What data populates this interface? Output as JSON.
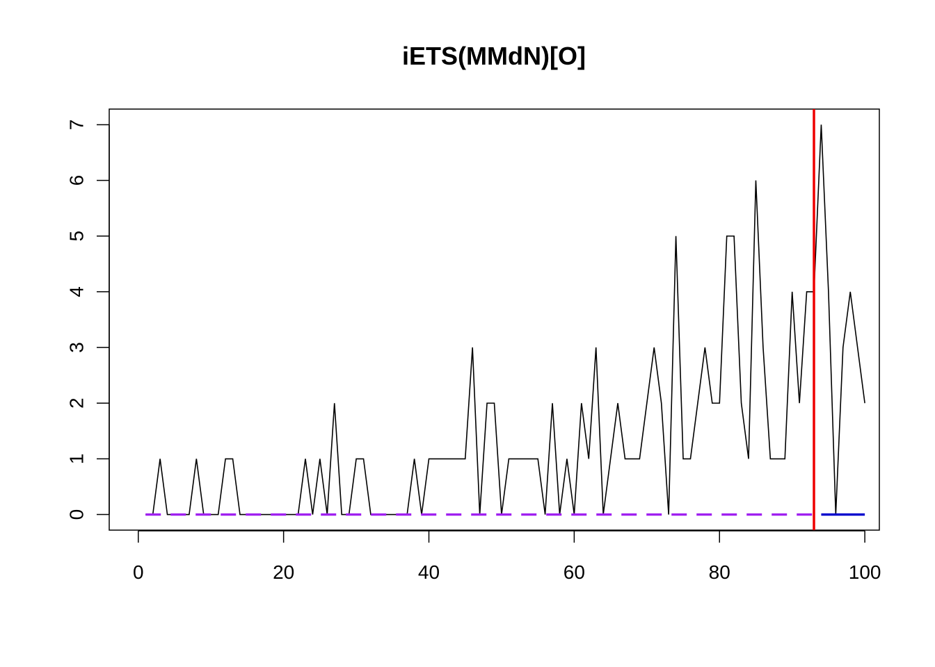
{
  "chart_data": {
    "type": "line",
    "title": "iETS(MMdN)[O]",
    "xlabel": "",
    "ylabel": "",
    "xlim": [
      -4,
      102
    ],
    "ylim": [
      -0.28,
      7.28
    ],
    "x_ticks": [
      0,
      20,
      40,
      60,
      80,
      100
    ],
    "y_ticks": [
      0,
      1,
      2,
      3,
      4,
      5,
      6,
      7
    ],
    "grid": false,
    "legend": "none",
    "series": [
      {
        "role": "actuals",
        "color": "#000000",
        "style": "solid",
        "x_start": 1,
        "values": [
          0,
          0,
          1,
          0,
          0,
          0,
          0,
          1,
          0,
          0,
          0,
          1,
          1,
          0,
          0,
          0,
          0,
          0,
          0,
          0,
          0,
          0,
          1,
          0,
          1,
          0,
          2,
          0,
          0,
          1,
          1,
          0,
          0,
          0,
          0,
          0,
          0,
          1,
          0,
          1,
          1,
          1,
          1,
          1,
          1,
          3,
          0,
          2,
          2,
          0,
          1,
          1,
          1,
          1,
          1,
          0,
          2,
          0,
          1,
          0,
          2,
          1,
          3,
          0,
          1,
          2,
          1,
          1,
          1,
          2,
          3,
          2,
          0,
          5,
          1,
          1,
          2,
          3,
          2,
          2,
          5,
          5,
          2,
          1,
          6,
          3,
          1,
          1,
          1,
          4,
          2,
          4,
          4,
          7,
          4,
          0,
          3,
          4,
          3,
          2
        ]
      },
      {
        "role": "fitted",
        "color": "#a020f0",
        "style": "dashed",
        "x": [
          1,
          93
        ],
        "values": [
          0,
          0
        ]
      },
      {
        "role": "forecast",
        "color": "#0000cd",
        "style": "solid",
        "x": [
          94,
          100
        ],
        "values": [
          0,
          0
        ]
      }
    ],
    "vline": {
      "x": 93,
      "color": "#ee0000"
    }
  }
}
